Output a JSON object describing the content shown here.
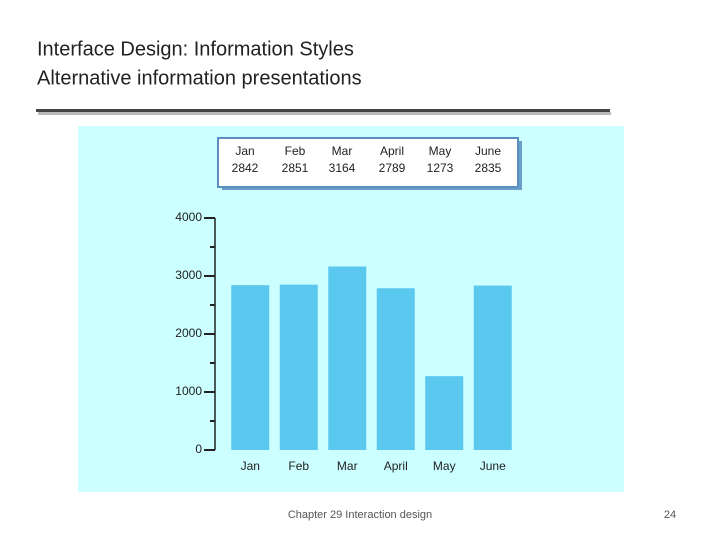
{
  "slide": {
    "title": "Interface Design: Information Styles",
    "subtitle": "Alternative information presentations",
    "footer": "Chapter 29 Interaction design",
    "page_number": "24"
  },
  "chart_data": {
    "type": "bar",
    "categories": [
      "Jan",
      "Feb",
      "Mar",
      "April",
      "May",
      "June"
    ],
    "values": [
      2842,
      2851,
      3164,
      2789,
      1273,
      2835
    ],
    "color": "#5bc8f0",
    "ylim": [
      0,
      4000
    ],
    "yticks": [
      0,
      1000,
      2000,
      3000,
      4000
    ],
    "y_minor_ticks": [
      500,
      1500,
      2500,
      3500
    ],
    "grid": false
  }
}
